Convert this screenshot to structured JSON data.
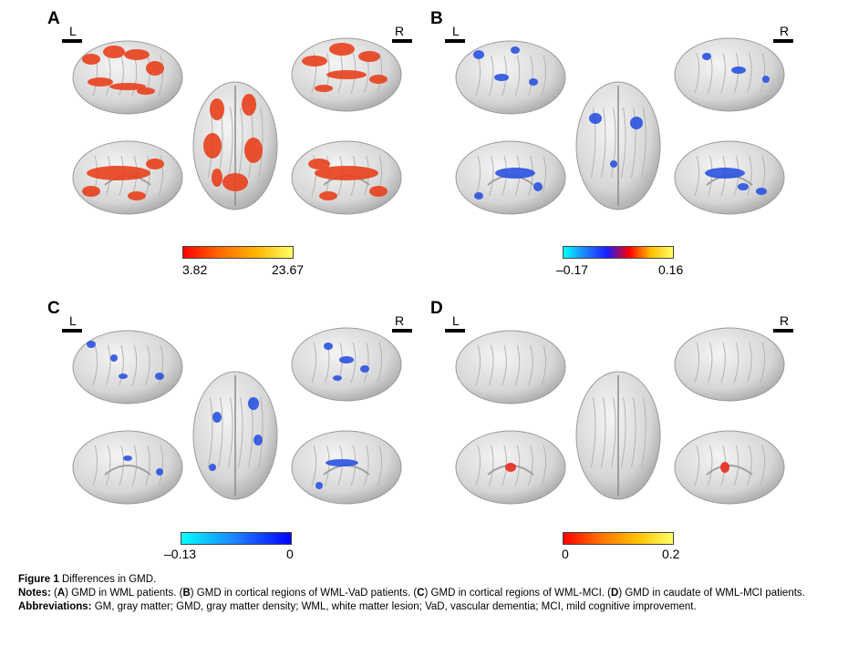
{
  "panels": [
    {
      "letter": "A",
      "left_label": "L",
      "right_label": "R",
      "scale": {
        "min": "3.82",
        "max": "23.67",
        "gradient": [
          "#ff0000",
          "#ff6a00",
          "#ffb400",
          "#ffff66"
        ]
      },
      "blob_color": "#e8401c"
    },
    {
      "letter": "B",
      "left_label": "L",
      "right_label": "R",
      "scale": {
        "min": "–0.17",
        "max": "0.16",
        "gradient": [
          "#00ffff",
          "#1e7fff",
          "#1a1aff",
          "#ff0000",
          "#ffc000",
          "#ffff66"
        ]
      },
      "blob_color": "#2a52e0"
    },
    {
      "letter": "C",
      "left_label": "L",
      "right_label": "R",
      "scale": {
        "min": "–0.13",
        "max": "0",
        "gradient": [
          "#00ffff",
          "#1e7fff",
          "#0000ff"
        ]
      },
      "blob_color": "#2a52e0"
    },
    {
      "letter": "D",
      "left_label": "L",
      "right_label": "R",
      "scale": {
        "min": "0",
        "max": "0.2",
        "gradient": [
          "#ff0000",
          "#ff7000",
          "#ffc000",
          "#ffff66"
        ]
      },
      "blob_color": "#e82a1c"
    }
  ],
  "caption": {
    "figure_label": "Figure 1",
    "figure_title": "Differences in GMD.",
    "notes_label": "Notes:",
    "notes": [
      {
        "ref": "A",
        "text": " GMD in WML patients. "
      },
      {
        "ref": "B",
        "text": " GMD in cortical regions of WML-VaD patients. "
      },
      {
        "ref": "C",
        "text": " GMD in cortical regions of WML-MCI. "
      },
      {
        "ref": "D",
        "text": " GMD in caudate of WML-MCI patients."
      }
    ],
    "abbreviations_label": "Abbreviations:",
    "abbreviations": "GM, gray matter; GMD, gray matter density; WML, white matter lesion; VaD, vascular dementia; MCI, mild cognitive improvement."
  }
}
